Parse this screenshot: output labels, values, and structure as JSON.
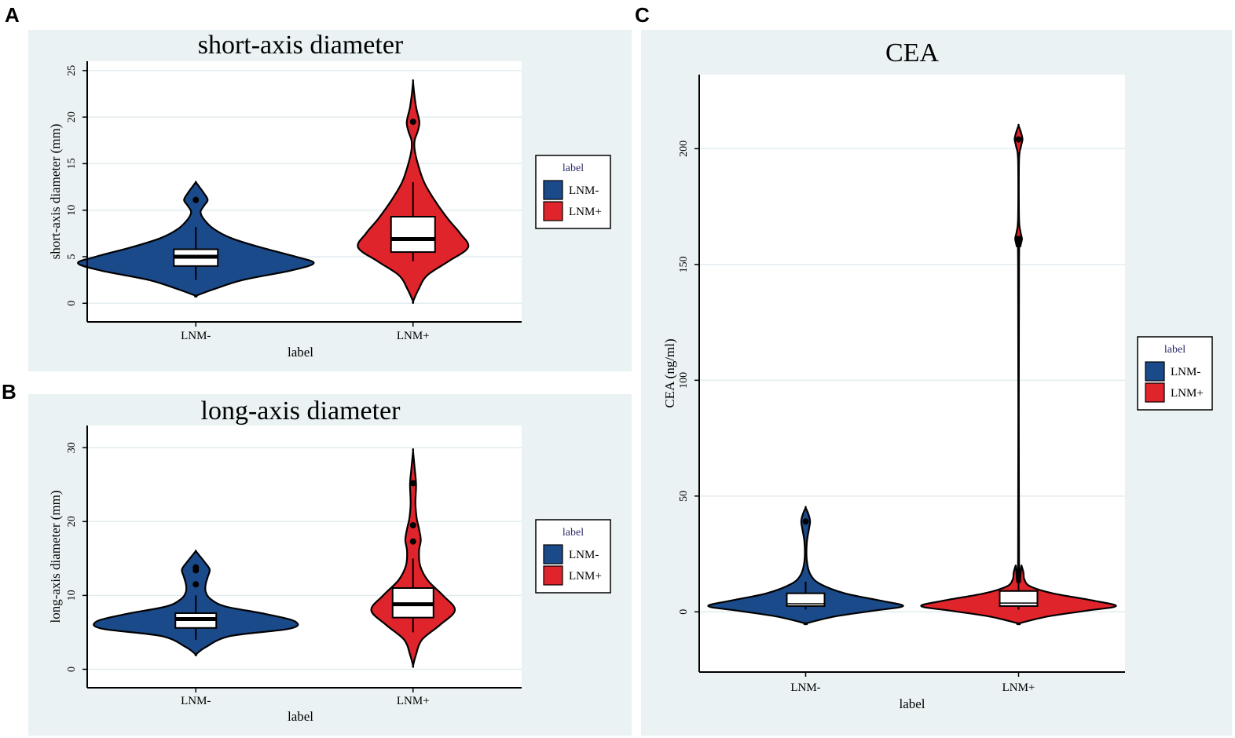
{
  "panels": [
    {
      "letter": "A",
      "title": "short-axis diameter",
      "ylabel": "short-axis diameter (mm)",
      "xlabel": "label"
    },
    {
      "letter": "B",
      "title": "long-axis diameter",
      "ylabel": "long-axis diameter (mm)",
      "xlabel": "label"
    },
    {
      "letter": "C",
      "title": "CEA",
      "ylabel": "CEA (ng/ml)",
      "xlabel": "label"
    }
  ],
  "legend": {
    "title": "label",
    "items": [
      {
        "label": "LNM-",
        "color": "#1b4a8a"
      },
      {
        "label": "LNM+",
        "color": "#e0242b"
      }
    ]
  },
  "chart_data": [
    {
      "type": "violin",
      "title": "short-axis diameter",
      "xlabel": "label",
      "ylabel": "short-axis diameter (mm)",
      "ylim": [
        -2,
        26
      ],
      "yticks": [
        0,
        5,
        10,
        15,
        20,
        25
      ],
      "categories": [
        "LNM-",
        "LNM+"
      ],
      "series": [
        {
          "name": "LNM-",
          "color": "#1b4a8a",
          "profile": [
            [
              0.8,
              0
            ],
            [
              1.5,
              0.15
            ],
            [
              2.5,
              0.4
            ],
            [
              3.5,
              0.8
            ],
            [
              4.3,
              1.0
            ],
            [
              5,
              0.85
            ],
            [
              6,
              0.55
            ],
            [
              7,
              0.3
            ],
            [
              8,
              0.15
            ],
            [
              9,
              0.07
            ],
            [
              9.8,
              0.04
            ],
            [
              10.5,
              0.07
            ],
            [
              11.1,
              0.1
            ],
            [
              11.8,
              0.07
            ],
            [
              12.5,
              0.03
            ],
            [
              13,
              0
            ]
          ],
          "box": {
            "q1": 4.0,
            "median": 5.0,
            "q3": 5.8
          },
          "whiskers": [
            2.5,
            8.2
          ],
          "outliers": [
            11.1
          ]
        },
        {
          "name": "LNM+",
          "color": "#e0242b",
          "profile": [
            [
              0.2,
              0
            ],
            [
              1.5,
              0.07
            ],
            [
              3,
              0.18
            ],
            [
              4.5,
              0.45
            ],
            [
              6,
              0.7
            ],
            [
              7.5,
              0.6
            ],
            [
              9,
              0.45
            ],
            [
              11,
              0.28
            ],
            [
              13,
              0.14
            ],
            [
              15,
              0.06
            ],
            [
              16.5,
              0.02
            ],
            [
              17.5,
              0.02
            ],
            [
              18.5,
              0.06
            ],
            [
              19.5,
              0.08
            ],
            [
              21,
              0.04
            ],
            [
              22.5,
              0.015
            ],
            [
              23.8,
              0
            ]
          ],
          "box": {
            "q1": 5.5,
            "median": 6.9,
            "q3": 9.3
          },
          "whiskers": [
            4.5,
            13.0
          ],
          "outliers": [
            19.5
          ]
        }
      ]
    },
    {
      "type": "violin",
      "title": "long-axis diameter",
      "xlabel": "label",
      "ylabel": "long-axis diameter (mm)",
      "ylim": [
        -2.5,
        33
      ],
      "yticks": [
        0,
        10,
        20,
        30
      ],
      "categories": [
        "LNM-",
        "LNM+"
      ],
      "series": [
        {
          "name": "LNM-",
          "color": "#1b4a8a",
          "profile": [
            [
              2.0,
              0
            ],
            [
              3,
              0.1
            ],
            [
              4.5,
              0.35
            ],
            [
              5.5,
              0.95
            ],
            [
              6.5,
              1.0
            ],
            [
              7.5,
              0.7
            ],
            [
              8.5,
              0.3
            ],
            [
              9.5,
              0.15
            ],
            [
              10.5,
              0.1
            ],
            [
              11.5,
              0.1
            ],
            [
              12.5,
              0.12
            ],
            [
              13.5,
              0.14
            ],
            [
              14.5,
              0.09
            ],
            [
              15.5,
              0.03
            ],
            [
              16,
              0
            ]
          ],
          "box": {
            "q1": 5.6,
            "median": 6.8,
            "q3": 7.6
          },
          "whiskers": [
            4.0,
            10.0
          ],
          "outliers": [
            11.5,
            13.4,
            13.8
          ]
        },
        {
          "name": "LNM+",
          "color": "#e0242b",
          "profile": [
            [
              0.5,
              0
            ],
            [
              2,
              0.05
            ],
            [
              4,
              0.15
            ],
            [
              6,
              0.45
            ],
            [
              8,
              0.7
            ],
            [
              10,
              0.5
            ],
            [
              12,
              0.25
            ],
            [
              14,
              0.12
            ],
            [
              16,
              0.1
            ],
            [
              17.5,
              0.13
            ],
            [
              19,
              0.1
            ],
            [
              20.5,
              0.06
            ],
            [
              22.5,
              0.04
            ],
            [
              25,
              0.05
            ],
            [
              27,
              0.03
            ],
            [
              29.5,
              0
            ]
          ],
          "box": {
            "q1": 7.0,
            "median": 8.8,
            "q3": 11.0
          },
          "whiskers": [
            5.0,
            15.0
          ],
          "outliers": [
            17.3,
            19.5,
            25.2
          ]
        }
      ]
    },
    {
      "type": "violin",
      "title": "CEA",
      "xlabel": "label",
      "ylabel": "CEA (ng/ml)",
      "ylim": [
        -26,
        232
      ],
      "yticks": [
        0,
        50,
        100,
        150,
        200
      ],
      "categories": [
        "LNM-",
        "LNM+"
      ],
      "series": [
        {
          "name": "LNM-",
          "color": "#1b4a8a",
          "profile": [
            [
              -5,
              0
            ],
            [
              -2,
              0.3
            ],
            [
              0.5,
              0.7
            ],
            [
              2.5,
              1.0
            ],
            [
              5,
              0.75
            ],
            [
              8,
              0.4
            ],
            [
              12,
              0.15
            ],
            [
              16,
              0.05
            ],
            [
              22,
              0.012
            ],
            [
              30,
              0.012
            ],
            [
              36,
              0.035
            ],
            [
              39,
              0.045
            ],
            [
              42,
              0.03
            ],
            [
              45,
              0
            ]
          ],
          "box": {
            "q1": 2.5,
            "median": 3.5,
            "q3": 8.0
          },
          "whiskers": [
            1.0,
            13.0
          ],
          "outliers": [
            39
          ]
        },
        {
          "name": "LNM+",
          "color": "#e0242b",
          "profile": [
            [
              -5,
              0
            ],
            [
              -2,
              0.3
            ],
            [
              0.5,
              0.7
            ],
            [
              2.5,
              1.0
            ],
            [
              5,
              0.75
            ],
            [
              8,
              0.35
            ],
            [
              11,
              0.12
            ],
            [
              14,
              0.06
            ],
            [
              17,
              0.05
            ],
            [
              20,
              0.03
            ],
            [
              23,
              0.005
            ],
            [
              150,
              0.005
            ],
            [
              158,
              0.02
            ],
            [
              161,
              0.035
            ],
            [
              164,
              0.02
            ],
            [
              170,
              0.005
            ],
            [
              195,
              0.005
            ],
            [
              201,
              0.025
            ],
            [
              204,
              0.04
            ],
            [
              207,
              0.025
            ],
            [
              210,
              0
            ]
          ],
          "box": {
            "q1": 2.5,
            "median": 3.8,
            "q3": 9.0
          },
          "whiskers": [
            1.0,
            14.0
          ],
          "outliers": [
            17.5,
            161,
            204
          ]
        }
      ]
    }
  ]
}
